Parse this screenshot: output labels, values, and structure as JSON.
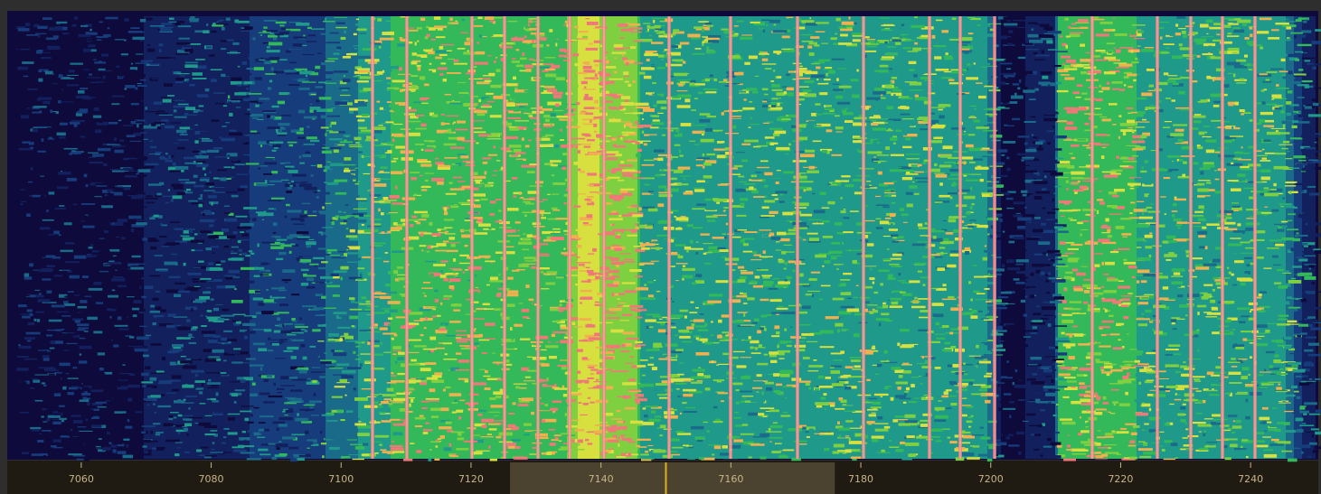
{
  "chart_data": {
    "type": "waterfall",
    "xlim": [
      7050,
      7250
    ],
    "xticks": [
      7060,
      7080,
      7100,
      7120,
      7140,
      7160,
      7180,
      7200,
      7220,
      7240
    ],
    "passband": [
      7126,
      7176
    ],
    "tuned_frequency": 7150
  }
}
